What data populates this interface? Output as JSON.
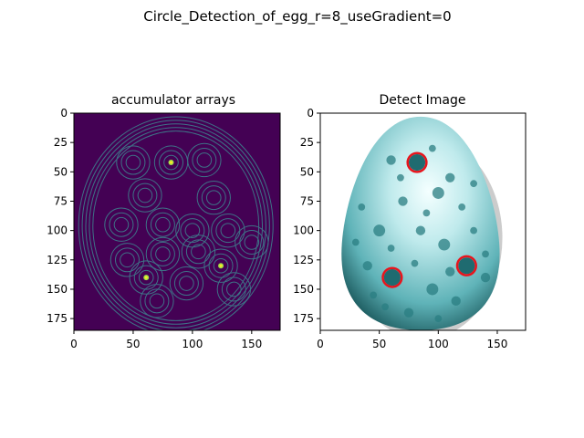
{
  "figure": {
    "suptitle": "Circle_Detection_of_egg_r=8_useGradient=0"
  },
  "chart_data": [
    {
      "type": "heatmap",
      "title": "accumulator arrays",
      "xlabel": "",
      "ylabel": "",
      "xlim": [
        0,
        174
      ],
      "ylim": [
        185,
        0
      ],
      "xticks": [
        0,
        50,
        100,
        150
      ],
      "yticks": [
        0,
        25,
        50,
        75,
        100,
        125,
        150,
        175
      ],
      "colormap": "viridis",
      "background_color": "#440154",
      "peaks": [
        {
          "x": 82,
          "y": 42
        },
        {
          "x": 61,
          "y": 140
        },
        {
          "x": 124,
          "y": 130
        }
      ]
    },
    {
      "type": "image",
      "title": "Detect Image",
      "xlabel": "",
      "ylabel": "",
      "xlim": [
        0,
        174
      ],
      "ylim": [
        185,
        0
      ],
      "xticks": [
        0,
        50,
        100,
        150
      ],
      "yticks": [
        0,
        25,
        50,
        75,
        100,
        125,
        150,
        175
      ],
      "detected_circles": [
        {
          "x": 82,
          "y": 42,
          "r": 8
        },
        {
          "x": 61,
          "y": 140,
          "r": 8
        },
        {
          "x": 124,
          "y": 130,
          "r": 8
        }
      ],
      "circle_color": "#e8141c",
      "egg_color": "#7ec9cc"
    }
  ]
}
